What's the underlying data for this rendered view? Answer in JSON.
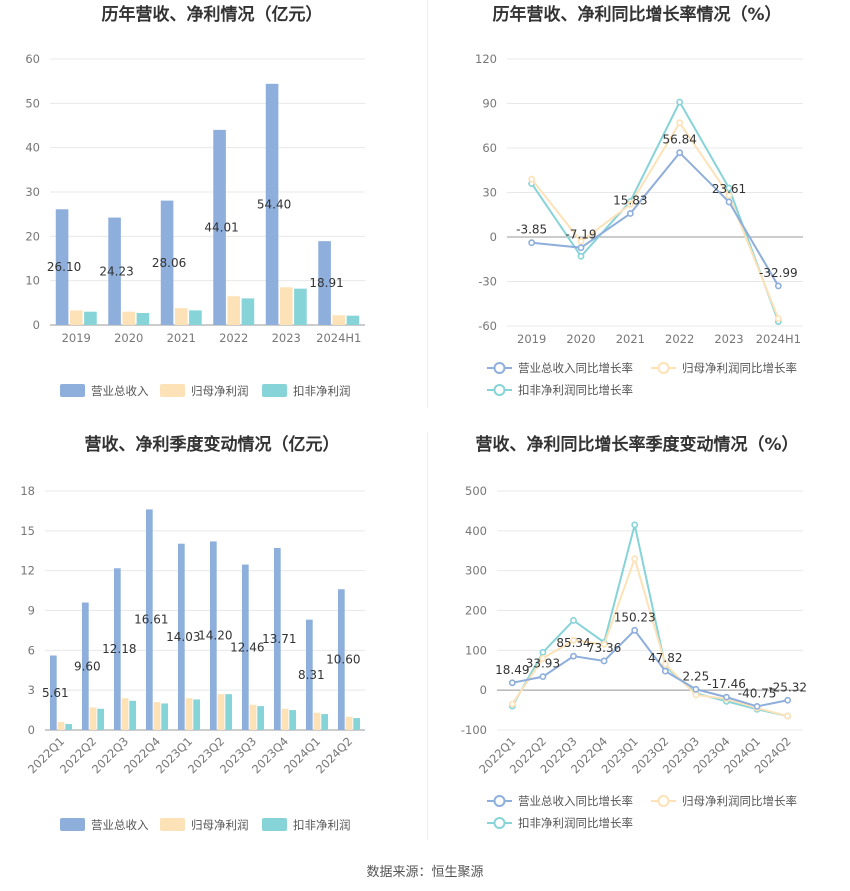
{
  "footer": {
    "source": "数据来源：恒生聚源"
  },
  "colors": {
    "revenue": "#8eaedc",
    "parent": "#fde2b8",
    "deducted": "#86d3d8",
    "axis": "#999999",
    "grid": "#e8e8e8"
  },
  "chart_data": [
    {
      "type": "bar",
      "title": "历年营收、净利情况（亿元）",
      "categories": [
        "2019",
        "2020",
        "2021",
        "2022",
        "2023",
        "2024H1"
      ],
      "ylim": [
        0,
        60
      ],
      "yticks": [
        0,
        10,
        20,
        30,
        40,
        50,
        60
      ],
      "grid": true,
      "legend": "bottom",
      "series": [
        {
          "name": "营业总收入",
          "color": "#8eaedc",
          "values": [
            26.1,
            24.23,
            28.06,
            44.01,
            54.4,
            18.91
          ],
          "labels": [
            "26.10",
            "24.23",
            "28.06",
            "44.01",
            "54.40",
            "18.91"
          ]
        },
        {
          "name": "归母净利润",
          "color": "#fde2b8",
          "values": [
            3.3,
            3.0,
            3.8,
            6.5,
            8.5,
            2.2
          ]
        },
        {
          "name": "扣非净利润",
          "color": "#86d3d8",
          "values": [
            3.0,
            2.7,
            3.3,
            6.0,
            8.2,
            2.1
          ]
        }
      ]
    },
    {
      "type": "line",
      "title": "历年营收、净利同比增长率情况（%）",
      "categories": [
        "2019",
        "2020",
        "2021",
        "2022",
        "2023",
        "2024H1"
      ],
      "ylim": [
        -60,
        120
      ],
      "yticks": [
        -60,
        -30,
        0,
        30,
        60,
        90,
        120
      ],
      "grid": true,
      "legend": "bottom",
      "series": [
        {
          "name": "营业总收入同比增长率",
          "color": "#8eaedc",
          "values": [
            -3.85,
            -7.19,
            15.83,
            56.84,
            23.61,
            -32.99
          ],
          "labels": [
            "-3.85",
            "-7.19",
            "15.83",
            "56.84",
            "23.61",
            "-32.99"
          ]
        },
        {
          "name": "归母净利润同比增长率",
          "color": "#fde2b8",
          "values": [
            39,
            -3,
            22,
            77,
            28,
            -55
          ]
        },
        {
          "name": "扣非净利润同比增长率",
          "color": "#86d3d8",
          "values": [
            36,
            -13,
            24,
            91,
            33,
            -57
          ]
        }
      ]
    },
    {
      "type": "bar",
      "title": "营收、净利季度变动情况（亿元）",
      "categories": [
        "2022Q1",
        "2022Q2",
        "2022Q3",
        "2022Q4",
        "2023Q1",
        "2023Q2",
        "2023Q3",
        "2023Q4",
        "2024Q1",
        "2024Q2"
      ],
      "ylim": [
        0,
        18
      ],
      "yticks": [
        0,
        3,
        6,
        9,
        12,
        15,
        18
      ],
      "grid": true,
      "legend": "bottom",
      "series": [
        {
          "name": "营业总收入",
          "color": "#8eaedc",
          "values": [
            5.61,
            9.6,
            12.18,
            16.61,
            14.03,
            14.2,
            12.46,
            13.71,
            8.31,
            10.6
          ],
          "labels": [
            "5.61",
            "9.60",
            "12.18",
            "16.61",
            "14.03",
            "14.20",
            "12.46",
            "13.71",
            "8.31",
            "10.60"
          ]
        },
        {
          "name": "归母净利润",
          "color": "#fde2b8",
          "values": [
            0.6,
            1.7,
            2.4,
            2.1,
            2.4,
            2.7,
            1.9,
            1.6,
            1.3,
            1.0
          ]
        },
        {
          "name": "扣非净利润",
          "color": "#86d3d8",
          "values": [
            0.45,
            1.6,
            2.2,
            2.0,
            2.3,
            2.7,
            1.8,
            1.5,
            1.2,
            0.9
          ]
        }
      ]
    },
    {
      "type": "line",
      "title": "营收、净利同比增长率季度变动情况（%）",
      "categories": [
        "2022Q1",
        "2022Q2",
        "2022Q3",
        "2022Q4",
        "2023Q1",
        "2023Q2",
        "2023Q3",
        "2023Q4",
        "2024Q1",
        "2024Q2"
      ],
      "ylim": [
        -100,
        500
      ],
      "yticks": [
        -100,
        0,
        100,
        200,
        300,
        400,
        500
      ],
      "grid": true,
      "legend": "bottom",
      "series": [
        {
          "name": "营业总收入同比增长率",
          "color": "#8eaedc",
          "values": [
            18.49,
            33.93,
            85.34,
            73.36,
            150.23,
            47.82,
            2.25,
            -17.46,
            -40.75,
            -25.32
          ],
          "labels": [
            "18.49",
            "33.93",
            "85.34",
            "73.36",
            "150.23",
            "47.82",
            "2.25",
            "-17.46",
            "-40.75",
            "-25.32"
          ]
        },
        {
          "name": "归母净利润同比增长率",
          "color": "#fde2b8",
          "values": [
            -35,
            80,
            125,
            115,
            330,
            65,
            -12,
            -22,
            -45,
            -65
          ]
        },
        {
          "name": "扣非净利润同比增长率",
          "color": "#86d3d8",
          "values": [
            -40,
            95,
            175,
            120,
            415,
            60,
            -8,
            -28,
            -48,
            -65
          ]
        }
      ]
    }
  ]
}
